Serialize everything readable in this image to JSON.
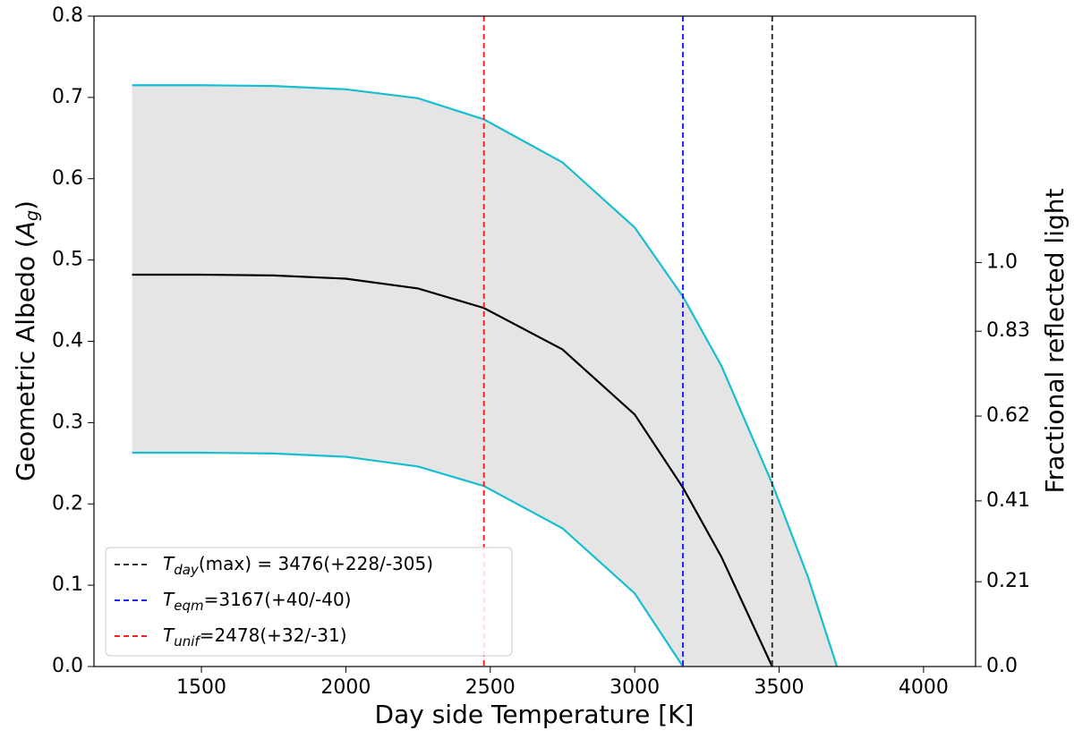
{
  "chart_data": {
    "type": "line",
    "x_label": "Day side Temperature [K]",
    "y_label": {
      "text": "Geometric Albedo (",
      "symbol": "A",
      "sub": "g",
      "end": ")"
    },
    "y2_label": "Fractional reflected light",
    "xlim": [
      1128,
      4180
    ],
    "xticks": [
      1500,
      2000,
      2500,
      3000,
      3500,
      4000
    ],
    "ylim": [
      0,
      0.8
    ],
    "yticks": [
      {
        "value": 0,
        "label": "0.0"
      },
      0.1,
      0.2,
      0.3,
      0.4,
      0.5,
      0.6,
      0.7,
      0.8
    ],
    "y2lim": [
      0,
      1.61
    ],
    "y2ticks": [
      {
        "value": 0,
        "label": "0.0"
      },
      0.21,
      0.41,
      0.62,
      0.83,
      {
        "value": 1,
        "label": "1.0"
      }
    ],
    "x": [
      1260,
      1500,
      1750,
      2000,
      2250,
      2478,
      2750,
      3000,
      3167,
      3300,
      3476,
      3600,
      3700
    ],
    "band_color": "#e5e5e5",
    "series": [
      {
        "color": "#17becf",
        "values": [
          0.715,
          0.715,
          0.714,
          0.71,
          0.699,
          0.673,
          0.62,
          0.54,
          0.455,
          0.37,
          0.225,
          0.11,
          0.0
        ]
      },
      {
        "color": "#000000",
        "values": [
          0.482,
          0.482,
          0.481,
          0.477,
          0.465,
          0.441,
          0.39,
          0.31,
          0.22,
          0.135,
          0.0,
          null,
          null
        ]
      },
      {
        "color": "#17becf",
        "values": [
          0.263,
          0.263,
          0.262,
          0.258,
          0.246,
          0.222,
          0.17,
          0.09,
          0.0,
          null,
          null,
          null,
          null
        ]
      }
    ],
    "vlines": [
      {
        "x": 3476,
        "color": "#333333",
        "symbol": "T",
        "sub": "day",
        "text": "(max) = 3476(+228/-305)"
      },
      {
        "x": 3167,
        "color": "#1f1fff",
        "symbol": "T",
        "sub": "eqm",
        "text": "=3167(+40/-40)"
      },
      {
        "x": 2478,
        "color": "#ff2020",
        "symbol": "T",
        "sub": "unif",
        "text": "=2478(+32/-31)"
      }
    ],
    "legend": "lower left"
  }
}
